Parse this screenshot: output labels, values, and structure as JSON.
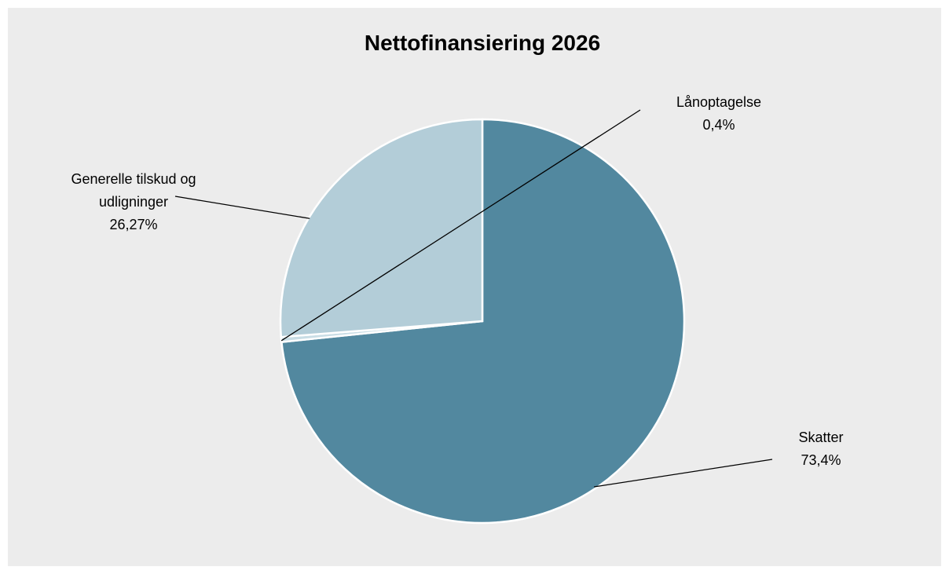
{
  "chart_data": {
    "type": "pie",
    "title": "Nettofinansiering 2026",
    "slices": [
      {
        "name": "Skatter",
        "value": 73.4,
        "label_value": "73,4%",
        "color": "#52889f"
      },
      {
        "name": "Lånoptagelse",
        "value": 0.4,
        "label_value": "0,4%",
        "color": "#c9dde5"
      },
      {
        "name": "Generelle tilskud og udligninger",
        "label_lines": [
          "Generelle tilskud og",
          "udligninger"
        ],
        "value": 26.27,
        "label_value": "26,27%",
        "color": "#b3cdd8"
      }
    ],
    "legend": "none"
  }
}
